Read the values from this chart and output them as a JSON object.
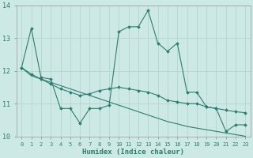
{
  "xlabel": "Humidex (Indice chaleur)",
  "x_ticks": [
    0,
    1,
    2,
    3,
    4,
    5,
    6,
    7,
    8,
    9,
    10,
    11,
    12,
    13,
    14,
    15,
    16,
    17,
    18,
    19,
    20,
    21,
    22,
    23
  ],
  "ylim": [
    10,
    14
  ],
  "yticks": [
    10,
    11,
    12,
    13,
    14
  ],
  "bg_color": "#cce9e5",
  "grid_color": "#b8d8d3",
  "line_color": "#2e7d6e",
  "series1": [
    12.1,
    13.3,
    11.8,
    11.75,
    10.85,
    10.85,
    10.4,
    10.85,
    10.85,
    10.95,
    13.2,
    13.35,
    13.35,
    13.85,
    12.85,
    12.6,
    12.85,
    11.35,
    11.35,
    10.9,
    10.85,
    10.15,
    10.35,
    10.35
  ],
  "series2": [
    12.1,
    11.9,
    11.75,
    11.6,
    11.45,
    11.35,
    11.25,
    11.3,
    11.4,
    11.45,
    11.5,
    11.45,
    11.4,
    11.35,
    11.25,
    11.1,
    11.05,
    11.0,
    11.0,
    10.9,
    10.85,
    10.8,
    10.75,
    10.72
  ],
  "series3": [
    12.1,
    11.85,
    11.75,
    11.65,
    11.55,
    11.45,
    11.35,
    11.25,
    11.15,
    11.05,
    10.95,
    10.85,
    10.75,
    10.65,
    10.55,
    10.45,
    10.38,
    10.3,
    10.25,
    10.2,
    10.15,
    10.1,
    10.05,
    10.0
  ]
}
